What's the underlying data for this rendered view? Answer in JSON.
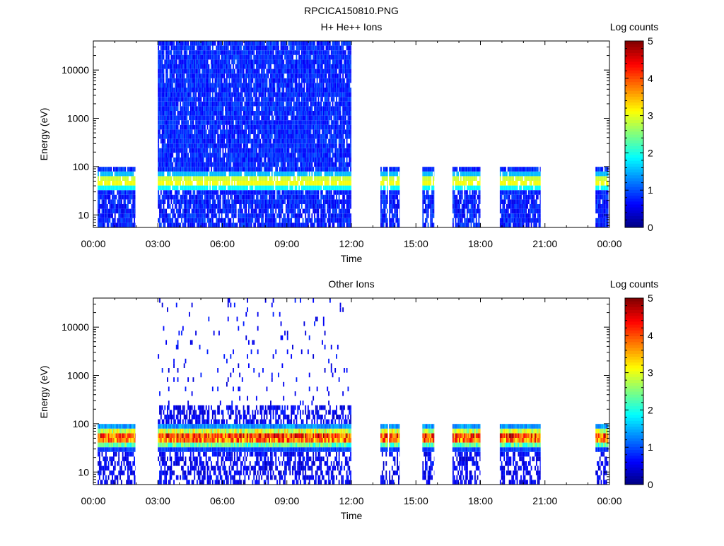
{
  "figure_title": "RPCICA150810.PNG",
  "chart_data": [
    {
      "type": "heatmap",
      "title": "H+ He++ Ions",
      "xlabel": "Time",
      "ylabel": "Energy (eV)",
      "x_ticks": [
        "00:00",
        "03:00",
        "06:00",
        "09:00",
        "12:00",
        "15:00",
        "18:00",
        "21:00",
        "00:00"
      ],
      "xlim_hours": [
        0,
        24
      ],
      "y_scale": "log",
      "ylim": [
        5.5,
        40000
      ],
      "y_ticks": [
        "10",
        "100",
        "1000",
        "10000"
      ],
      "y_tick_values": [
        10,
        100,
        1000,
        10000
      ],
      "colorbar": {
        "label": "Log counts",
        "range": [
          0,
          5
        ],
        "ticks": [
          "0",
          "1",
          "2",
          "3",
          "4",
          "5"
        ],
        "colormap": "jet"
      },
      "data_intervals_hours": [
        [
          0.2,
          1.95
        ],
        [
          3.0,
          12.0
        ],
        [
          13.35,
          13.7
        ],
        [
          13.75,
          14.25
        ],
        [
          15.3,
          15.85
        ],
        [
          16.7,
          18.0
        ],
        [
          18.9,
          20.8
        ],
        [
          23.35,
          23.95
        ]
      ],
      "energy_peak_eV": [
        35,
        70
      ],
      "peak_log_counts": 3.2,
      "background_log_counts": 0.8,
      "grid": false
    },
    {
      "type": "heatmap",
      "title": "Other Ions",
      "xlabel": "Time",
      "ylabel": "Energy (eV)",
      "x_ticks": [
        "00:00",
        "03:00",
        "06:00",
        "09:00",
        "12:00",
        "15:00",
        "18:00",
        "21:00",
        "00:00"
      ],
      "xlim_hours": [
        0,
        24
      ],
      "y_scale": "log",
      "ylim": [
        5.5,
        40000
      ],
      "y_ticks": [
        "10",
        "100",
        "1000",
        "10000"
      ],
      "y_tick_values": [
        10,
        100,
        1000,
        10000
      ],
      "colorbar": {
        "label": "Log counts",
        "range": [
          0,
          5
        ],
        "ticks": [
          "0",
          "1",
          "2",
          "3",
          "4",
          "5"
        ],
        "colormap": "jet"
      },
      "data_intervals_hours": [
        [
          0.2,
          1.95
        ],
        [
          3.0,
          12.0
        ],
        [
          13.35,
          13.7
        ],
        [
          13.75,
          14.25
        ],
        [
          15.3,
          15.85
        ],
        [
          16.7,
          18.0
        ],
        [
          18.9,
          20.8
        ],
        [
          23.35,
          23.95
        ]
      ],
      "energy_peak_eV": [
        35,
        80
      ],
      "peak_log_counts": 4.2,
      "background_log_counts": 0.3,
      "grid": false
    }
  ]
}
